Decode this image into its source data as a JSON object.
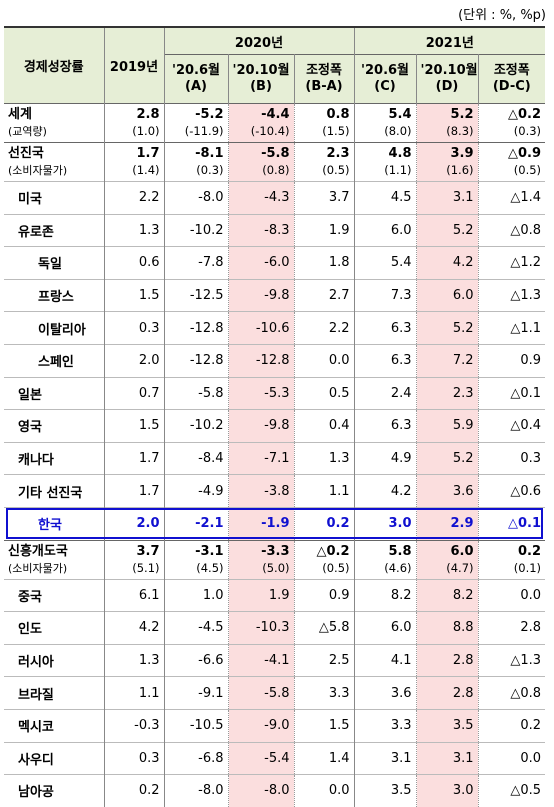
{
  "unit_label": "(단위 : %, %p)",
  "header": {
    "col_name": "경제성장률",
    "col_2019": "2019년",
    "group_2020": "2020년",
    "group_2021": "2021년",
    "sub": [
      {
        "l1": "'20.6월",
        "l2": "(A)"
      },
      {
        "l1": "'20.10월",
        "l2": "(B)"
      },
      {
        "l1": "조정폭",
        "l2": "(B-A)"
      },
      {
        "l1": "'20.6월",
        "l2": "(C)"
      },
      {
        "l1": "'20.10월",
        "l2": "(D)"
      },
      {
        "l1": "조정폭",
        "l2": "(D-C)"
      }
    ]
  },
  "rows": [
    {
      "name": "세계",
      "sub": "(교역량)",
      "values": [
        "2.8",
        "-5.2",
        "-4.4",
        "0.8",
        "5.4",
        "5.2",
        "△0.2"
      ],
      "values2": [
        "(1.0)",
        "(-11.9)",
        "(-10.4)",
        "(1.5)",
        "(8.0)",
        "(8.3)",
        "(0.3)"
      ]
    },
    {
      "name": "선진국",
      "sub": "(소비자물가)",
      "values": [
        "1.7",
        "-8.1",
        "-5.8",
        "2.3",
        "4.8",
        "3.9",
        "△0.9"
      ],
      "values2": [
        "(1.4)",
        "(0.3)",
        "(0.8)",
        "(0.5)",
        "(1.1)",
        "(1.6)",
        "(0.5)"
      ]
    },
    {
      "name": "미국",
      "values": [
        "2.2",
        "-8.0",
        "-4.3",
        "3.7",
        "4.5",
        "3.1",
        "△1.4"
      ]
    },
    {
      "name": "유로존",
      "values": [
        "1.3",
        "-10.2",
        "-8.3",
        "1.9",
        "6.0",
        "5.2",
        "△0.8"
      ]
    },
    {
      "name": "독일",
      "values": [
        "0.6",
        "-7.8",
        "-6.0",
        "1.8",
        "5.4",
        "4.2",
        "△1.2"
      ]
    },
    {
      "name": "프랑스",
      "values": [
        "1.5",
        "-12.5",
        "-9.8",
        "2.7",
        "7.3",
        "6.0",
        "△1.3"
      ]
    },
    {
      "name": "이탈리아",
      "values": [
        "0.3",
        "-12.8",
        "-10.6",
        "2.2",
        "6.3",
        "5.2",
        "△1.1"
      ]
    },
    {
      "name": "스페인",
      "values": [
        "2.0",
        "-12.8",
        "-12.8",
        "0.0",
        "6.3",
        "7.2",
        "0.9"
      ]
    },
    {
      "name": "일본",
      "values": [
        "0.7",
        "-5.8",
        "-5.3",
        "0.5",
        "2.4",
        "2.3",
        "△0.1"
      ]
    },
    {
      "name": "영국",
      "values": [
        "1.5",
        "-10.2",
        "-9.8",
        "0.4",
        "6.3",
        "5.9",
        "△0.4"
      ]
    },
    {
      "name": "캐나다",
      "values": [
        "1.7",
        "-8.4",
        "-7.1",
        "1.3",
        "4.9",
        "5.2",
        "0.3"
      ]
    },
    {
      "name": "기타 선진국",
      "values": [
        "1.7",
        "-4.9",
        "-3.8",
        "1.1",
        "4.2",
        "3.6",
        "△0.6"
      ]
    },
    {
      "name": "한국",
      "values": [
        "2.0",
        "-2.1",
        "-1.9",
        "0.2",
        "3.0",
        "2.9",
        "△0.1"
      ]
    },
    {
      "name": "신흥개도국",
      "sub": "(소비자물가)",
      "values": [
        "3.7",
        "-3.1",
        "-3.3",
        "△0.2",
        "5.8",
        "6.0",
        "0.2"
      ],
      "values2": [
        "(5.1)",
        "(4.5)",
        "(5.0)",
        "(0.5)",
        "(4.6)",
        "(4.7)",
        "(0.1)"
      ]
    },
    {
      "name": "중국",
      "values": [
        "6.1",
        "1.0",
        "1.9",
        "0.9",
        "8.2",
        "8.2",
        "0.0"
      ]
    },
    {
      "name": "인도",
      "values": [
        "4.2",
        "-4.5",
        "-10.3",
        "△5.8",
        "6.0",
        "8.8",
        "2.8"
      ]
    },
    {
      "name": "러시아",
      "values": [
        "1.3",
        "-6.6",
        "-4.1",
        "2.5",
        "4.1",
        "2.8",
        "△1.3"
      ]
    },
    {
      "name": "브라질",
      "values": [
        "1.1",
        "-9.1",
        "-5.8",
        "3.3",
        "3.6",
        "2.8",
        "△0.8"
      ]
    },
    {
      "name": "멕시코",
      "values": [
        "-0.3",
        "-10.5",
        "-9.0",
        "1.5",
        "3.3",
        "3.5",
        "0.2"
      ]
    },
    {
      "name": "사우디",
      "values": [
        "0.3",
        "-6.8",
        "-5.4",
        "1.4",
        "3.1",
        "3.1",
        "0.0"
      ]
    },
    {
      "name": "남아공",
      "values": [
        "0.2",
        "-8.0",
        "-8.0",
        "0.0",
        "3.5",
        "3.0",
        "△0.5"
      ]
    }
  ]
}
